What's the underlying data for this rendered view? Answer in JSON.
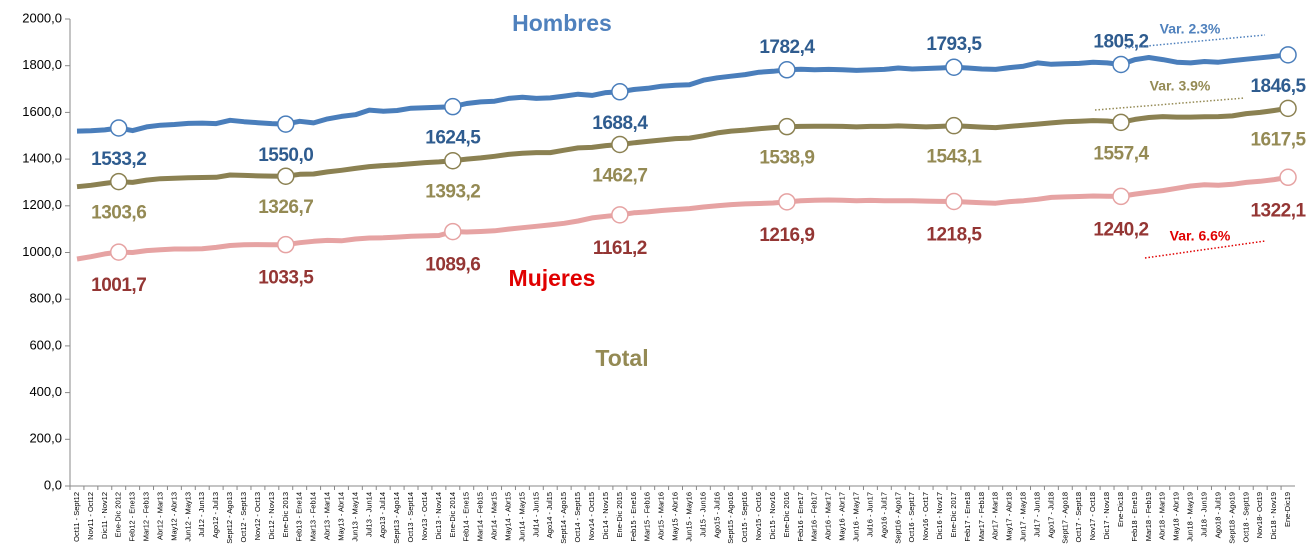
{
  "chart_data": {
    "type": "line",
    "categories": [
      "Oct11 - Sept12",
      "Nov11 - Oct12",
      "Dic11 - Nov12",
      "Ene-Dic 2012",
      "Feb12 - Ene13",
      "Mar12 - Feb13",
      "Abr12 - Mar13",
      "May12 - Abr13",
      "Jun12 - May13",
      "Jul12 - Jun13",
      "Ago12 - Jul13",
      "Sept12 - Ago13",
      "Oct12 - Sept13",
      "Nov12 - Oct13",
      "Dic12 - Nov13",
      "Ene-Dic 2013",
      "Feb13 - Ene14",
      "Mar13 - Feb14",
      "Abr13 - Mar14",
      "May13 - Abr14",
      "Jun13 - May14",
      "Jul13 - Jun14",
      "Ago13 - Jul14",
      "Sept13 - Ago14",
      "Oct13 - Sept14",
      "Nov13 - Oct14",
      "Dic13 - Nov14",
      "Ene-Dic 2014",
      "Feb14 - Ene15",
      "Mar14 - Feb15",
      "Abr14 - Mar15",
      "May14 - Abr15",
      "Jun14 - May15",
      "Jul14 - Jun15",
      "Ago14 - Jul15",
      "Sept14 - Ago15",
      "Oct14 - Sept15",
      "Nov14 - Oct15",
      "Dic14 - Nov15",
      "Ene-Dic 2015",
      "Feb15 - Ene16",
      "Mar15 - Feb16",
      "Abr15 - Mar16",
      "May15 - Abr16",
      "Jun15 - May16",
      "Jul15 - Jun16",
      "Ago15 - Jul16",
      "Sept15 - Ago16",
      "Oct15 - Sept16",
      "Nov15 - Oct16",
      "Dic15 - Nov16",
      "Ene-Dic 2016",
      "Feb16 - Ene17",
      "Mar16 - Feb17",
      "Abr16 - Mar17",
      "May16 - Abr17",
      "Jun16 - May17",
      "Jul16 - Jun17",
      "Ago16 - Jul17",
      "Sept16 - Ago17",
      "Oct16 - Sept17",
      "Nov16 - Oct17",
      "Dic16 - Nov17",
      "Ene-Dic 2017",
      "Feb17 - Ene18",
      "Mar17 - Feb18",
      "Abr17 - Mar18",
      "May17 - Abr18",
      "Jun17 - May18",
      "Jul17 - Jun18",
      "Ago17 - Jul18",
      "Sept17 - Ago18",
      "Oct17 - Sept18",
      "Nov17 - Oct18",
      "Dic17 - Nov18",
      "Ene-Dic18",
      "Feb18 - Ene19",
      "Mar18 - Feb19",
      "Abr18 - Mar19",
      "May18 - Abr19",
      "Jun18 - May19",
      "Jul18 - Jun19",
      "Ago18 - Jul19",
      "Sept18 - Ago19",
      "Oct18 - Sept19",
      "Nov18- Oct19",
      "Dic18 - Nov19",
      "Ene-Dic19"
    ],
    "series": [
      {
        "name": "Hombres",
        "color": "#4a7ebb",
        "label_color": "#2f5c8f",
        "name_color": "#4f81bd",
        "values": [
          1520,
          1521,
          1525,
          1533.2,
          1522,
          1538,
          1545,
          1548,
          1553,
          1554,
          1552,
          1566,
          1560,
          1556,
          1552,
          1550,
          1562,
          1555,
          1572,
          1583,
          1590,
          1610,
          1605,
          1608,
          1618,
          1620,
          1622,
          1624.5,
          1638,
          1645,
          1648,
          1660,
          1665,
          1660,
          1662,
          1670,
          1678,
          1673,
          1685,
          1688.4,
          1698,
          1703,
          1712,
          1716,
          1718,
          1738,
          1748,
          1755,
          1762,
          1772,
          1776,
          1782.4,
          1785,
          1783,
          1784,
          1783,
          1780,
          1782,
          1784,
          1790,
          1786,
          1788,
          1790,
          1793.5,
          1790,
          1786,
          1784,
          1792,
          1798,
          1812,
          1806,
          1808,
          1810,
          1815,
          1812,
          1805.2,
          1826,
          1835,
          1826,
          1815,
          1812,
          1818,
          1815,
          1822,
          1828,
          1834,
          1840,
          1846.5
        ],
        "value_labels": [
          null,
          null,
          null,
          "1533,2",
          null,
          null,
          null,
          null,
          null,
          null,
          null,
          null,
          null,
          null,
          null,
          "1550,0",
          null,
          null,
          null,
          null,
          null,
          null,
          null,
          null,
          null,
          null,
          null,
          "1624,5",
          null,
          null,
          null,
          null,
          null,
          null,
          null,
          null,
          null,
          null,
          null,
          "1688,4",
          null,
          null,
          null,
          null,
          null,
          null,
          null,
          null,
          null,
          null,
          null,
          "1782,4",
          null,
          null,
          null,
          null,
          null,
          null,
          null,
          null,
          null,
          null,
          null,
          "1793,5",
          null,
          null,
          null,
          null,
          null,
          null,
          null,
          null,
          null,
          null,
          null,
          "1805,2",
          null,
          null,
          null,
          null,
          null,
          null,
          null,
          null,
          null,
          null,
          null,
          "1846,5"
        ]
      },
      {
        "name": "Total",
        "color": "#8b8152",
        "label_color": "#948a54",
        "name_color": "#948a54",
        "values": [
          1282,
          1288,
          1296,
          1303.6,
          1300,
          1310,
          1316,
          1318,
          1320,
          1321,
          1322,
          1332,
          1330,
          1328,
          1327,
          1326.7,
          1335,
          1336,
          1345,
          1352,
          1360,
          1368,
          1372,
          1375,
          1380,
          1385,
          1388,
          1393.2,
          1400,
          1405,
          1412,
          1420,
          1425,
          1428,
          1428,
          1438,
          1448,
          1450,
          1458,
          1462.7,
          1470,
          1476,
          1482,
          1488,
          1490,
          1500,
          1512,
          1520,
          1524,
          1530,
          1535,
          1538.9,
          1540,
          1541,
          1541,
          1540,
          1538,
          1540,
          1540,
          1542,
          1540,
          1538,
          1540,
          1543.1,
          1540,
          1537,
          1535,
          1540,
          1545,
          1550,
          1555,
          1560,
          1562,
          1565,
          1563,
          1557.4,
          1570,
          1578,
          1582,
          1580,
          1580,
          1581,
          1582,
          1585,
          1595,
          1600,
          1608,
          1617.5
        ],
        "value_labels": [
          null,
          null,
          null,
          "1303,6",
          null,
          null,
          null,
          null,
          null,
          null,
          null,
          null,
          null,
          null,
          null,
          "1326,7",
          null,
          null,
          null,
          null,
          null,
          null,
          null,
          null,
          null,
          null,
          null,
          "1393,2",
          null,
          null,
          null,
          null,
          null,
          null,
          null,
          null,
          null,
          null,
          null,
          "1462,7",
          null,
          null,
          null,
          null,
          null,
          null,
          null,
          null,
          null,
          null,
          null,
          "1538,9",
          null,
          null,
          null,
          null,
          null,
          null,
          null,
          null,
          null,
          null,
          null,
          "1543,1",
          null,
          null,
          null,
          null,
          null,
          null,
          null,
          null,
          null,
          null,
          null,
          "1557,4",
          null,
          null,
          null,
          null,
          null,
          null,
          null,
          null,
          null,
          null,
          null,
          "1617,5"
        ]
      },
      {
        "name": "Mujeres",
        "color": "#e6a3a3",
        "label_color": "#943634",
        "name_color": "#e00000",
        "values": [
          972,
          982,
          994,
          1001.7,
          1000,
          1008,
          1012,
          1015,
          1015,
          1016,
          1022,
          1030,
          1033,
          1034,
          1033,
          1033.5,
          1042,
          1048,
          1052,
          1050,
          1058,
          1062,
          1063,
          1066,
          1070,
          1071,
          1073,
          1089.6,
          1088,
          1090,
          1093,
          1100,
          1106,
          1112,
          1118,
          1125,
          1135,
          1148,
          1155,
          1161.2,
          1170,
          1174,
          1180,
          1184,
          1188,
          1195,
          1200,
          1205,
          1208,
          1210,
          1212,
          1216.9,
          1222,
          1224,
          1225,
          1224,
          1222,
          1223,
          1222,
          1222,
          1222,
          1220,
          1219,
          1218.5,
          1216,
          1213,
          1211,
          1218,
          1222,
          1228,
          1236,
          1238,
          1240,
          1242,
          1241,
          1240.2,
          1250,
          1258,
          1265,
          1275,
          1285,
          1290,
          1288,
          1292,
          1300,
          1305,
          1312,
          1322.1
        ],
        "value_labels": [
          null,
          null,
          null,
          "1001,7",
          null,
          null,
          null,
          null,
          null,
          null,
          null,
          null,
          null,
          null,
          null,
          "1033,5",
          null,
          null,
          null,
          null,
          null,
          null,
          null,
          null,
          null,
          null,
          null,
          "1089,6",
          null,
          null,
          null,
          null,
          null,
          null,
          null,
          null,
          null,
          null,
          null,
          "1161,2",
          null,
          null,
          null,
          null,
          null,
          null,
          null,
          null,
          null,
          null,
          null,
          "1216,9",
          null,
          null,
          null,
          null,
          null,
          null,
          null,
          null,
          null,
          null,
          null,
          "1218,5",
          null,
          null,
          null,
          null,
          null,
          null,
          null,
          null,
          null,
          null,
          null,
          "1240,2",
          null,
          null,
          null,
          null,
          null,
          null,
          null,
          null,
          null,
          null,
          null,
          "1322,1"
        ]
      }
    ],
    "annotations": [
      {
        "text": "Var. 2.3%",
        "color": "#4f81bd"
      },
      {
        "text": "Var. 3.9%",
        "color": "#948a54"
      },
      {
        "text": "Var. 6.6%",
        "color": "#e00000"
      }
    ],
    "ylim": [
      0,
      2000
    ],
    "yticks": [
      {
        "value": 0,
        "label": "0,0"
      },
      {
        "value": 200,
        "label": "200,0"
      },
      {
        "value": 400,
        "label": "400,0"
      },
      {
        "value": 600,
        "label": "600,0"
      },
      {
        "value": 800,
        "label": "800,0"
      },
      {
        "value": 1000,
        "label": "1000,0"
      },
      {
        "value": 1200,
        "label": "1200,0"
      },
      {
        "value": 1400,
        "label": "1400,0"
      },
      {
        "value": 1600,
        "label": "1600,0"
      },
      {
        "value": 1800,
        "label": "1800,0"
      },
      {
        "value": 2000,
        "label": "2000,0"
      }
    ],
    "grid": false
  }
}
